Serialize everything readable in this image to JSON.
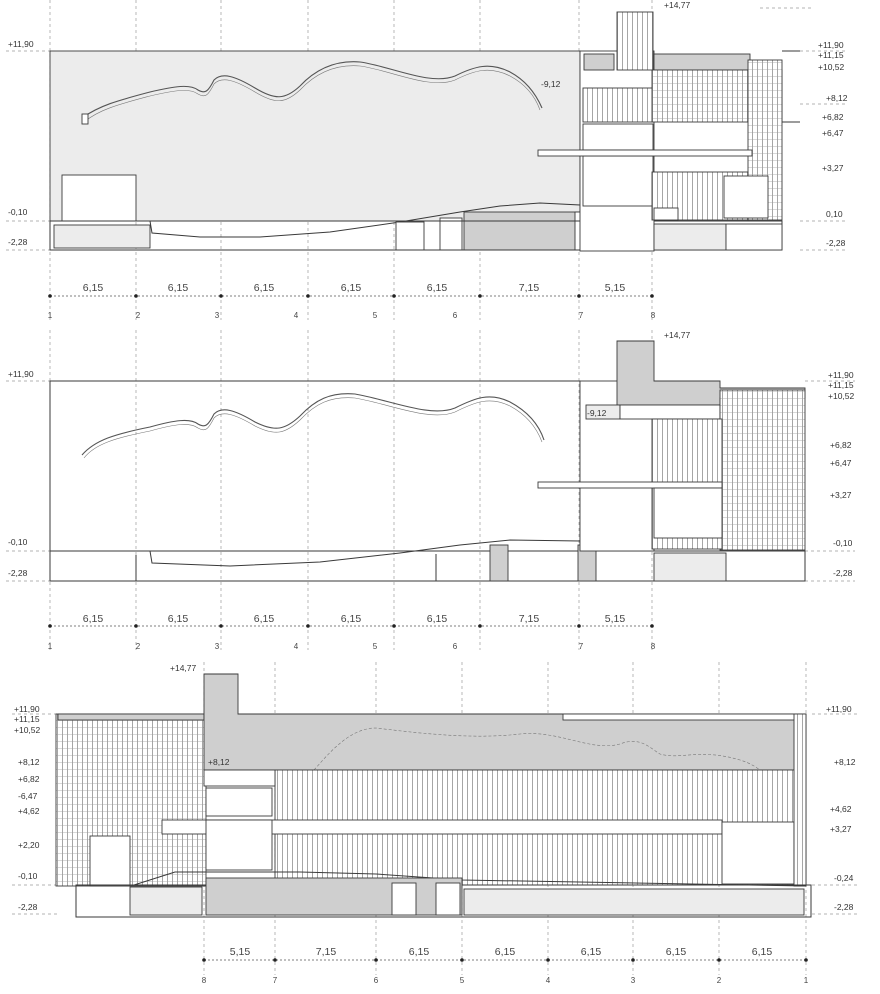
{
  "sections": [
    {
      "id": "section-a",
      "levels_left": [
        "+11,90",
        "-0,10",
        "-2,28"
      ],
      "levels_right": [
        "+14,77",
        "+11,90",
        "+11,15",
        "+10,52",
        "+8,12",
        "+6,82",
        "+6,47",
        "+3,27",
        "0,10",
        "-2,28"
      ],
      "inner_level": "-9,12",
      "dimensions": [
        "6,15",
        "6,15",
        "6,15",
        "6,15",
        "6,15",
        "7,15",
        "5,15"
      ],
      "axes": [
        "1",
        "2",
        "3",
        "4",
        "5",
        "6",
        "7",
        "8"
      ]
    },
    {
      "id": "section-b",
      "levels_left": [
        "+11,90",
        "-0,10",
        "-2,28"
      ],
      "levels_right": [
        "+14,77",
        "+11,90",
        "+11,15",
        "+10,52",
        "+6,82",
        "+6,47",
        "+3,27",
        "-0,10",
        "-2,28"
      ],
      "inner_level": "-9,12",
      "dimensions": [
        "6,15",
        "6,15",
        "6,15",
        "6,15",
        "6,15",
        "7,15",
        "5,15"
      ],
      "axes": [
        "1",
        "2",
        "3",
        "4",
        "5",
        "6",
        "7",
        "8"
      ]
    },
    {
      "id": "section-c",
      "levels_left": [
        "+14,77",
        "+11,90",
        "+11,15",
        "+10,52",
        "+8,12",
        "+6,82",
        "-6,47",
        "+4,62",
        "+2,20",
        "-0,10",
        "-2,28"
      ],
      "levels_right": [
        "+11,90",
        "+8,12",
        "+4,62",
        "+3,27",
        "-0,24",
        "-2,28"
      ],
      "inner_level": "+8,12",
      "dimensions": [
        "5,15",
        "7,15",
        "6,15",
        "6,15",
        "6,15",
        "6,15",
        "6,15"
      ],
      "axes": [
        "8",
        "7",
        "6",
        "5",
        "4",
        "3",
        "2",
        "1"
      ]
    }
  ]
}
